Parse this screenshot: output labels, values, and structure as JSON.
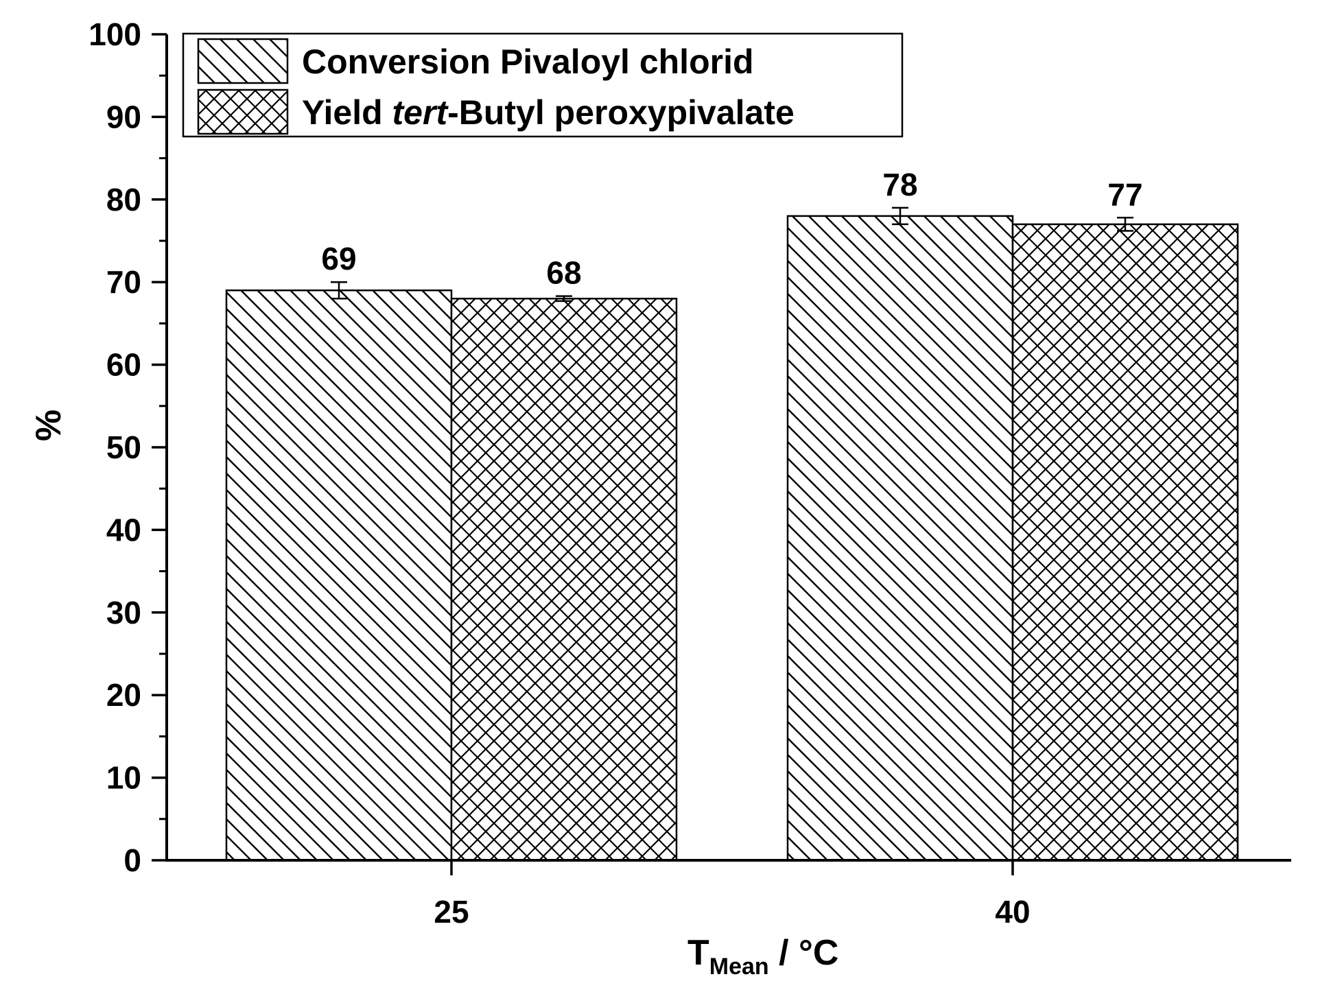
{
  "chart_data": {
    "type": "bar",
    "categories": [
      "25",
      "40"
    ],
    "series": [
      {
        "name_parts": [
          "Conversion Pivaloyl chlorid"
        ],
        "pattern": "diagonal-hatch",
        "values": [
          69,
          78
        ],
        "error": [
          1.0,
          1.0
        ],
        "data_labels": [
          "69",
          "78"
        ]
      },
      {
        "name_parts": [
          "Yield ",
          "tert",
          "-Butyl peroxypivalate"
        ],
        "pattern": "cross-hatch",
        "values": [
          68,
          77
        ],
        "error": [
          0.3,
          0.8
        ],
        "data_labels": [
          "68",
          "77"
        ]
      }
    ],
    "ylim": [
      0,
      100
    ],
    "yticks": [
      "0",
      "10",
      "20",
      "30",
      "40",
      "50",
      "60",
      "70",
      "80",
      "90",
      "100"
    ],
    "ylabel": "%",
    "xlabel_main": "T",
    "xlabel_subscript": "Mean",
    "xlabel_suffix": " / °C",
    "legend_position": "top-left",
    "grid": false,
    "colors": {
      "axis": "#000000",
      "bar_fill": "#ffffff",
      "hatch": "#000000"
    }
  }
}
